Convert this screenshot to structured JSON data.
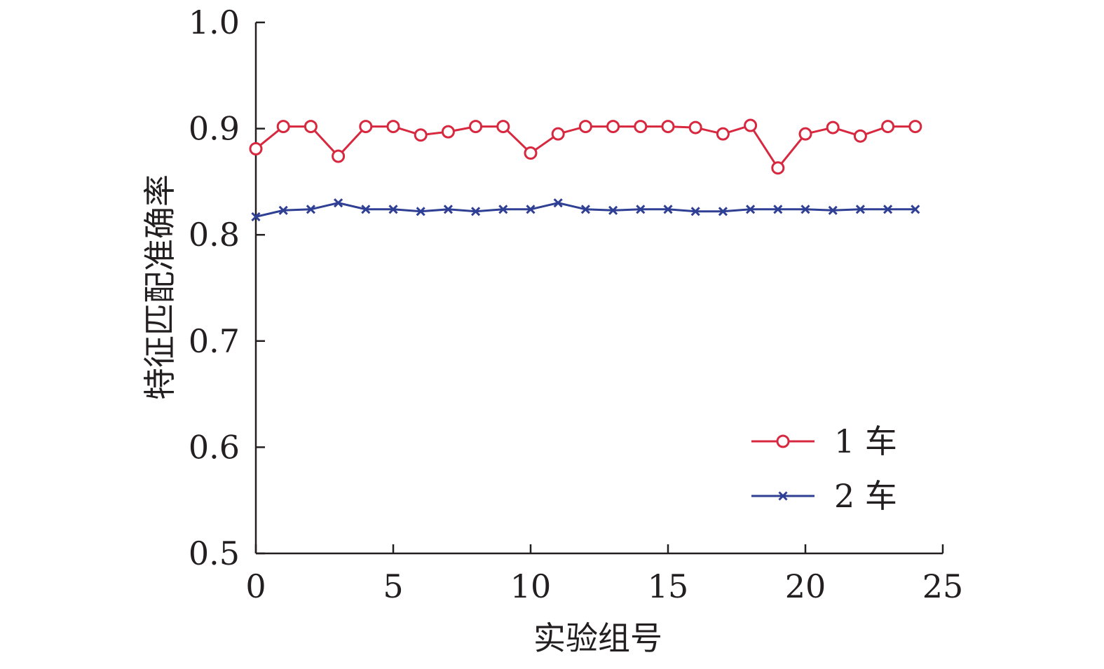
{
  "chart_data": {
    "type": "line",
    "title": "",
    "xlabel": "实验组号",
    "ylabel": "特征匹配准确率",
    "xlim": [
      0,
      25
    ],
    "ylim": [
      0.5,
      1.0
    ],
    "x_ticks": [
      "0",
      "5",
      "10",
      "15",
      "20",
      "25"
    ],
    "y_ticks": [
      "0.5",
      "0.6",
      "0.7",
      "0.8",
      "0.9",
      "1.0"
    ],
    "grid": false,
    "legend_position": "bottom-right",
    "x": [
      0,
      1,
      2,
      3,
      4,
      5,
      6,
      7,
      8,
      9,
      10,
      11,
      12,
      13,
      14,
      15,
      16,
      17,
      18,
      19,
      20,
      21,
      22,
      23,
      24
    ],
    "series": [
      {
        "name": "1 车",
        "color": "#d7283f",
        "marker": "circle",
        "values": [
          0.881,
          0.902,
          0.902,
          0.874,
          0.902,
          0.902,
          0.894,
          0.897,
          0.902,
          0.902,
          0.877,
          0.895,
          0.902,
          0.902,
          0.902,
          0.902,
          0.901,
          0.895,
          0.903,
          0.863,
          0.895,
          0.901,
          0.893,
          0.902,
          0.902
        ]
      },
      {
        "name": "2 车",
        "color": "#2e3f94",
        "marker": "x",
        "values": [
          0.817,
          0.823,
          0.824,
          0.83,
          0.824,
          0.824,
          0.822,
          0.824,
          0.822,
          0.824,
          0.824,
          0.83,
          0.824,
          0.823,
          0.824,
          0.824,
          0.822,
          0.822,
          0.824,
          0.824,
          0.824,
          0.823,
          0.824,
          0.824,
          0.824
        ]
      }
    ]
  }
}
